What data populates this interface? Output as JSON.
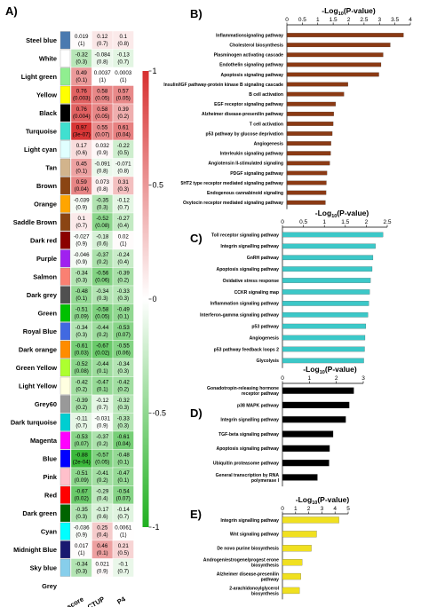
{
  "panels": {
    "A": "A)",
    "B": "B)",
    "C": "C)",
    "D": "D)",
    "E": "E)"
  },
  "colors": {
    "positive": "#d73030",
    "negative": "#20b020",
    "neutral": "#ffffff",
    "panel_b_bar": "#8b3a14",
    "panel_c_bar": "#3cc8c8",
    "panel_d_bar": "#000000",
    "panel_e_bar": "#f0e020"
  },
  "chart_data": [
    {
      "type": "heatmap",
      "panel": "A",
      "columns": [
        "Inflammation score",
        "CTUP",
        "P4"
      ],
      "colorbar": {
        "min": -1,
        "max": 1,
        "ticks": [
          "1",
          "0.5",
          "0",
          "-0.5",
          "-1"
        ]
      },
      "rows": [
        {
          "module": "Steel blue",
          "swatch": "#4a7ab0",
          "cells": [
            {
              "r": "0.019",
              "p": "(1)"
            },
            {
              "r": "0.12",
              "p": "(0.7)"
            },
            {
              "r": "0.1",
              "p": "(0.8)"
            }
          ]
        },
        {
          "module": "White",
          "swatch": "#ffffff",
          "cells": [
            {
              "r": "-0.32",
              "p": "(0.3)"
            },
            {
              "r": "-0.084",
              "p": "(0.8)"
            },
            {
              "r": "-0.13",
              "p": "(0.7)"
            }
          ]
        },
        {
          "module": "Light green",
          "swatch": "#90ee90",
          "cells": [
            {
              "r": "0.49",
              "p": "(0.1)"
            },
            {
              "r": "0.0037",
              "p": "(1)"
            },
            {
              "r": "0.0003",
              "p": "(1)"
            }
          ]
        },
        {
          "module": "Yellow",
          "swatch": "#ffff00",
          "cells": [
            {
              "r": "0.76",
              "p": "(0.003)"
            },
            {
              "r": "0.58",
              "p": "(0.05)"
            },
            {
              "r": "0.57",
              "p": "(0.05)"
            }
          ]
        },
        {
          "module": "Black",
          "swatch": "#000000",
          "cells": [
            {
              "r": "0.76",
              "p": "(0.004)"
            },
            {
              "r": "0.58",
              "p": "(0.05)"
            },
            {
              "r": "0.39",
              "p": "(0.2)"
            }
          ]
        },
        {
          "module": "Turquoise",
          "swatch": "#40e0d0",
          "cells": [
            {
              "r": "0.97",
              "p": "(3e-07)"
            },
            {
              "r": "0.55",
              "p": "(0.07)"
            },
            {
              "r": "0.61",
              "p": "(0.04)"
            }
          ]
        },
        {
          "module": "Light cyan",
          "swatch": "#e0ffff",
          "cells": [
            {
              "r": "0.17",
              "p": "(0.6)"
            },
            {
              "r": "0.032",
              "p": "(0.9)"
            },
            {
              "r": "-0.22",
              "p": "(0.5)"
            }
          ]
        },
        {
          "module": "Tan",
          "swatch": "#d2b48c",
          "cells": [
            {
              "r": "0.45",
              "p": "(0.1)"
            },
            {
              "r": "-0.091",
              "p": "(0.8)"
            },
            {
              "r": "-0.071",
              "p": "(0.8)"
            }
          ]
        },
        {
          "module": "Brown",
          "swatch": "#8b4513",
          "cells": [
            {
              "r": "0.59",
              "p": "(0.04)"
            },
            {
              "r": "0.073",
              "p": "(0.8)"
            },
            {
              "r": "0.31",
              "p": "(0.3)"
            }
          ]
        },
        {
          "module": "Orange",
          "swatch": "#ffa500",
          "cells": [
            {
              "r": "-0.039",
              "p": "(0.9)"
            },
            {
              "r": "-0.35",
              "p": "(0.3)"
            },
            {
              "r": "-0.12",
              "p": "(0.7)"
            }
          ]
        },
        {
          "module": "Saddle Brown",
          "swatch": "#8b4513",
          "cells": [
            {
              "r": "0.1",
              "p": "(0.7)"
            },
            {
              "r": "-0.52",
              "p": "(0.08)"
            },
            {
              "r": "-0.27",
              "p": "(0.4)"
            }
          ]
        },
        {
          "module": "Dark red",
          "swatch": "#8b0000",
          "cells": [
            {
              "r": "-0.027",
              "p": "(0.9)"
            },
            {
              "r": "-0.18",
              "p": "(0.6)"
            },
            {
              "r": "0.02",
              "p": "(1)"
            }
          ]
        },
        {
          "module": "Purple",
          "swatch": "#a020f0",
          "cells": [
            {
              "r": "-0.046",
              "p": "(0.9)"
            },
            {
              "r": "-0.37",
              "p": "(0.2)"
            },
            {
              "r": "-0.24",
              "p": "(0.4)"
            }
          ]
        },
        {
          "module": "Salmon",
          "swatch": "#fa8072",
          "cells": [
            {
              "r": "-0.34",
              "p": "(0.3)"
            },
            {
              "r": "-0.56",
              "p": "(0.06)"
            },
            {
              "r": "-0.39",
              "p": "(0.2)"
            }
          ]
        },
        {
          "module": "Dark grey",
          "swatch": "#505050",
          "cells": [
            {
              "r": "-0.48",
              "p": "(0.1)"
            },
            {
              "r": "-0.34",
              "p": "(0.3)"
            },
            {
              "r": "-0.33",
              "p": "(0.3)"
            }
          ]
        },
        {
          "module": "Green",
          "swatch": "#00c000",
          "cells": [
            {
              "r": "-0.51",
              "p": "(0.09)"
            },
            {
              "r": "-0.58",
              "p": "(0.05)"
            },
            {
              "r": "-0.49",
              "p": "(0.1)"
            }
          ]
        },
        {
          "module": "Royal Blue",
          "swatch": "#4169e1",
          "cells": [
            {
              "r": "-0.34",
              "p": "(0.3)"
            },
            {
              "r": "-0.44",
              "p": "(0.2)"
            },
            {
              "r": "-0.53",
              "p": "(0.07)"
            }
          ]
        },
        {
          "module": "Dark orange",
          "swatch": "#ff8c00",
          "cells": [
            {
              "r": "-0.61",
              "p": "(0.03)"
            },
            {
              "r": "-0.67",
              "p": "(0.02)"
            },
            {
              "r": "-0.55",
              "p": "(0.06)"
            }
          ]
        },
        {
          "module": "Green Yellow",
          "swatch": "#adff2f",
          "cells": [
            {
              "r": "-0.52",
              "p": "(0.08)"
            },
            {
              "r": "-0.44",
              "p": "(0.1)"
            },
            {
              "r": "-0.34",
              "p": "(0.3)"
            }
          ]
        },
        {
          "module": "Light Yellow",
          "swatch": "#ffffe0",
          "cells": [
            {
              "r": "-0.42",
              "p": "(0.2)"
            },
            {
              "r": "-0.47",
              "p": "(0.1)"
            },
            {
              "r": "-0.42",
              "p": "(0.2)"
            }
          ]
        },
        {
          "module": "Grey60",
          "swatch": "#999999",
          "cells": [
            {
              "r": "-0.39",
              "p": "(0.2)"
            },
            {
              "r": "-0.12",
              "p": "(0.7)"
            },
            {
              "r": "-0.32",
              "p": "(0.3)"
            }
          ]
        },
        {
          "module": "Dark turquoise",
          "swatch": "#00ced1",
          "cells": [
            {
              "r": "-0.11",
              "p": "(0.7)"
            },
            {
              "r": "-0.031",
              "p": "(0.9)"
            },
            {
              "r": "-0.33",
              "p": "(0.3)"
            }
          ]
        },
        {
          "module": "Magenta",
          "swatch": "#ff00ff",
          "cells": [
            {
              "r": "-0.53",
              "p": "(0.07)"
            },
            {
              "r": "-0.37",
              "p": "(0.2)"
            },
            {
              "r": "-0.61",
              "p": "(0.04)"
            }
          ]
        },
        {
          "module": "Blue",
          "swatch": "#0000ff",
          "cells": [
            {
              "r": "-0.88",
              "p": "(2e-04)"
            },
            {
              "r": "-0.57",
              "p": "(0.05)"
            },
            {
              "r": "-0.48",
              "p": "(0.1)"
            }
          ]
        },
        {
          "module": "Pink",
          "swatch": "#ffc0cb",
          "cells": [
            {
              "r": "-0.51",
              "p": "(0.09)"
            },
            {
              "r": "-0.41",
              "p": "(0.2)"
            },
            {
              "r": "-0.47",
              "p": "(0.1)"
            }
          ]
        },
        {
          "module": "Red",
          "swatch": "#ff0000",
          "cells": [
            {
              "r": "-0.67",
              "p": "(0.02)"
            },
            {
              "r": "-0.29",
              "p": "(0.4)"
            },
            {
              "r": "-0.54",
              "p": "(0.07)"
            }
          ]
        },
        {
          "module": "Dark green",
          "swatch": "#006400",
          "cells": [
            {
              "r": "-0.35",
              "p": "(0.3)"
            },
            {
              "r": "-0.17",
              "p": "(0.6)"
            },
            {
              "r": "-0.14",
              "p": "(0.7)"
            }
          ]
        },
        {
          "module": "Cyan",
          "swatch": "#00ffff",
          "cells": [
            {
              "r": "-0.036",
              "p": "(0.9)"
            },
            {
              "r": "0.25",
              "p": "(0.4)"
            },
            {
              "r": "0.0061",
              "p": "(1)"
            }
          ]
        },
        {
          "module": "Midnight Blue",
          "swatch": "#191970",
          "cells": [
            {
              "r": "0.017",
              "p": "(1)"
            },
            {
              "r": "0.46",
              "p": "(0.1)"
            },
            {
              "r": "0.21",
              "p": "(0.5)"
            }
          ]
        },
        {
          "module": "Sky blue",
          "swatch": "#87ceeb",
          "cells": [
            {
              "r": "-0.34",
              "p": "(0.3)"
            },
            {
              "r": "0.021",
              "p": "(0.9)"
            },
            {
              "r": "-0.1",
              "p": "(0.7)"
            }
          ]
        },
        {
          "module": "Grey",
          "swatch": "#ffffff",
          "cells": []
        }
      ]
    },
    {
      "type": "bar",
      "panel": "B",
      "orientation": "horizontal",
      "xlabel_main": "-Log",
      "xlabel_sub": "10",
      "xlabel_rest": "(P-value)",
      "xlim": [
        0,
        4
      ],
      "ticks": [
        "0",
        "0.5",
        "1",
        "1.5",
        "2",
        "2.5",
        "3",
        "3.5",
        "4"
      ],
      "categories": [
        "Inflammationsignaling pathway",
        "Cholesterol biosynthesis",
        "Plasminogen activating cascade",
        "Endothelin signaling pathway",
        "Apoptosis signaling pathway",
        "Insulin/IGF pathway-protein kinase B signaling cascade",
        "B cell activation",
        "EGF receptor signaling pathway",
        "Alzheimer disease-presenilin pathway",
        "T cell activation",
        "p53 pathway by glucose deprivation",
        "Angiogenesis",
        "Interleukin signaling pathway",
        "Angiotensin II-stimulated signaling",
        "PDGF signaling pathway",
        "5HT2 type receptor mediated signaling pathway",
        "Endogenous cannabinoid signaling",
        "Oxytocin receptor mediated signaling pathway"
      ],
      "values": [
        3.78,
        3.35,
        3.12,
        3.05,
        2.98,
        1.98,
        1.85,
        1.58,
        1.52,
        1.5,
        1.47,
        1.43,
        1.42,
        1.39,
        1.3,
        1.28,
        1.27,
        1.25
      ]
    },
    {
      "type": "bar",
      "panel": "C",
      "orientation": "horizontal",
      "xlabel_main": "-Log",
      "xlabel_sub": "10",
      "xlabel_rest": "(P-value)",
      "xlim": [
        0,
        2.5
      ],
      "ticks": [
        "0",
        "0.5",
        "1",
        "1.5",
        "2",
        "2.5"
      ],
      "categories": [
        "Toll receptor signaling pathway",
        "Integrin signalling pathway",
        "GnRH pathway",
        "Apoptosis signaling pathway",
        "Oxidative stress response",
        "CCKR signaling map",
        "Inflammation signaling pathway",
        "Interferon-gamma signaling pathway",
        "p53 pathway",
        "Angiogenesis",
        "p53 pathway feedback loops 2",
        "Glycolysis"
      ],
      "values": [
        2.4,
        2.22,
        2.16,
        2.14,
        2.1,
        2.08,
        2.06,
        2.04,
        1.99,
        1.97,
        1.96,
        1.94
      ]
    },
    {
      "type": "bar",
      "panel": "D",
      "orientation": "horizontal",
      "xlabel_main": "-Log",
      "xlabel_sub": "10",
      "xlabel_rest": "(P-value)",
      "xlim": [
        0,
        3
      ],
      "ticks": [
        "0",
        "1",
        "2",
        "3"
      ],
      "categories": [
        "Gonadotropin-releasing hormone receptor pathway",
        "p38 MAPK pathway",
        "Integrin signalling pathway",
        "TGF-beta signaling pathway",
        "Apoptosis signaling pathway",
        "Ubiquitin proteasome pathway",
        "General transcription by RNA polymerase I"
      ],
      "values": [
        2.65,
        2.48,
        2.35,
        1.88,
        1.75,
        1.73,
        1.3
      ]
    },
    {
      "type": "bar",
      "panel": "E",
      "orientation": "horizontal",
      "xlabel_main": "-Log",
      "xlabel_sub": "10",
      "xlabel_rest": "(P-value)",
      "xlim": [
        0,
        5
      ],
      "ticks": [
        "0",
        "1",
        "2",
        "3",
        "4",
        "5"
      ],
      "categories": [
        "Integrin signalling pathway",
        "Wnt signaling pathway",
        "De novo purine biosynthesis",
        "Androgen/estrogene/progest erone biosynthesis",
        "Alzheimer disease-presenilin pathway",
        "2-arachidonoylglycerol biosynthesis"
      ],
      "values": [
        4.3,
        2.6,
        2.2,
        1.5,
        1.4,
        1.3
      ]
    }
  ]
}
